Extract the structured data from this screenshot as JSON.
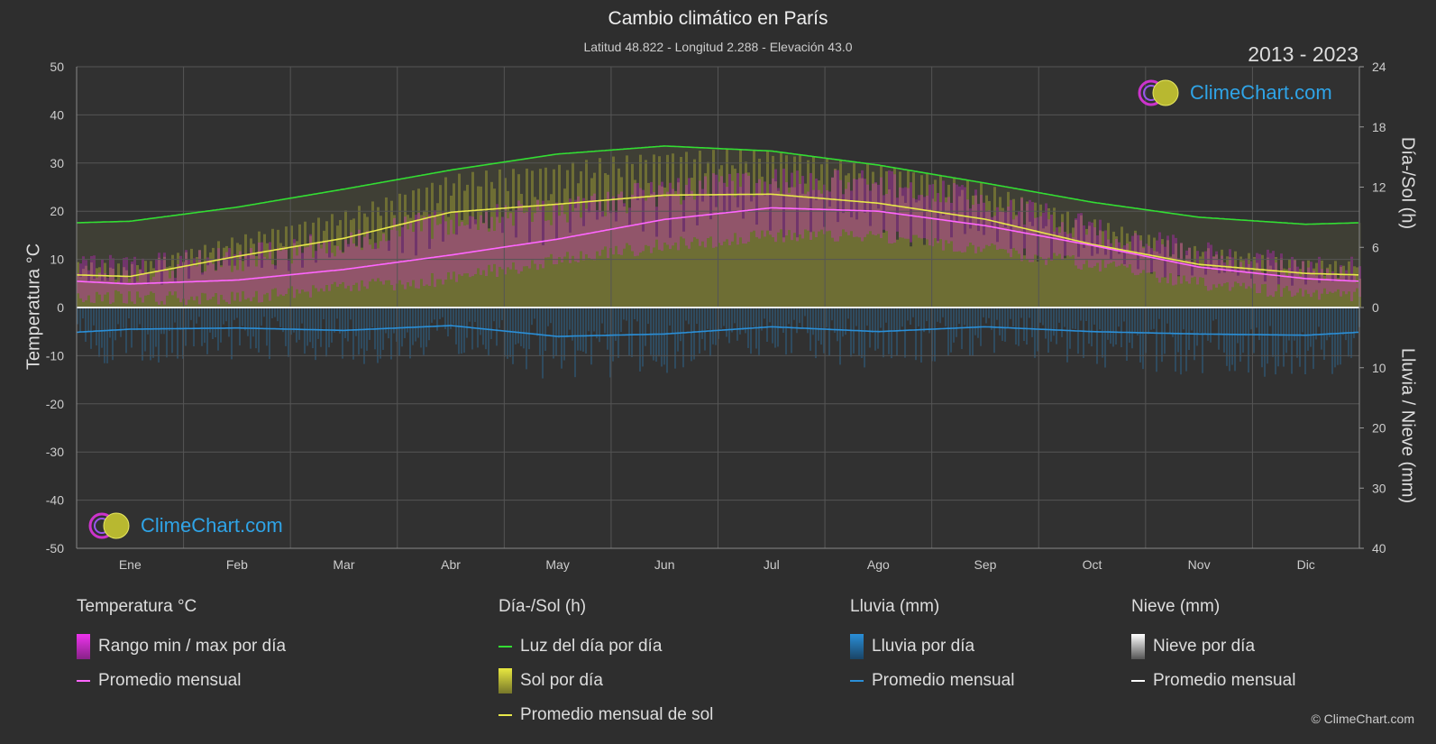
{
  "header": {
    "title": "Cambio climático en París",
    "subtitle": "Latitud 48.822 - Longitud 2.288 - Elevación 43.0",
    "range": "2013 - 2023"
  },
  "axes": {
    "left_label": "Temperatura °C",
    "right_top_label": "Día-/Sol (h)",
    "right_bottom_label": "Lluvia / Nieve (mm)"
  },
  "logo": {
    "text": "ClimeChart.com"
  },
  "legend": {
    "temp": {
      "title": "Temperatura °C",
      "range": "Rango min / max por día",
      "avg": "Promedio mensual"
    },
    "sun": {
      "title": "Día-/Sol (h)",
      "daylight": "Luz del día por día",
      "sun": "Sol por día",
      "sun_avg": "Promedio mensual de sol"
    },
    "rain": {
      "title": "Lluvia (mm)",
      "rain": "Lluvia por día",
      "avg": "Promedio mensual"
    },
    "snow": {
      "title": "Nieve (mm)",
      "snow": "Nieve por día",
      "avg": "Promedio mensual"
    }
  },
  "copyright": "© ClimeChart.com",
  "colors": {
    "background": "#2e2e2e",
    "grid": "#555555",
    "daylight": "#33dd33",
    "sun_avg": "#e8e84a",
    "temp_avg": "#ff66ff",
    "temp_range": "#dd22dd",
    "rain": "#2a8fd8",
    "snow": "#ffffff",
    "sun_fill": "#a8a832"
  },
  "chart_data": {
    "type": "line",
    "categories": [
      "Ene",
      "Feb",
      "Mar",
      "Abr",
      "May",
      "Jun",
      "Jul",
      "Ago",
      "Sep",
      "Oct",
      "Nov",
      "Dic"
    ],
    "y_left": {
      "label": "Temperatura °C",
      "ticks": [
        50,
        40,
        30,
        20,
        10,
        0,
        -10,
        -20,
        -30,
        -40,
        -50
      ],
      "range": [
        -50,
        50
      ]
    },
    "y_right_top": {
      "label": "Día-/Sol (h)",
      "ticks": [
        24,
        18,
        12,
        6,
        0
      ],
      "range": [
        0,
        24
      ]
    },
    "y_right_bottom": {
      "label": "Lluvia / Nieve (mm)",
      "ticks": [
        0,
        10,
        20,
        30,
        40
      ],
      "range": [
        0,
        40
      ]
    },
    "series": [
      {
        "name": "Luz del día por día",
        "unit": "h",
        "values": [
          8.6,
          10.0,
          11.8,
          13.7,
          15.3,
          16.1,
          15.6,
          14.2,
          12.4,
          10.5,
          9.0,
          8.3
        ]
      },
      {
        "name": "Promedio mensual de sol",
        "unit": "h",
        "values": [
          3.1,
          5.1,
          6.9,
          9.5,
          10.3,
          11.2,
          11.3,
          10.4,
          8.8,
          6.3,
          4.3,
          3.4
        ]
      },
      {
        "name": "Promedio mensual",
        "unit": "°C",
        "values": [
          4.9,
          5.7,
          7.9,
          10.9,
          14.2,
          18.3,
          20.7,
          20.0,
          17.0,
          12.9,
          8.4,
          6.0
        ]
      },
      {
        "name": "Lluvia promedio mensual",
        "unit": "mm",
        "values": [
          3.6,
          3.4,
          3.8,
          3.0,
          4.8,
          4.4,
          3.2,
          4.0,
          3.2,
          4.0,
          4.4,
          4.6
        ]
      }
    ],
    "temp_range_daily_avg": {
      "min": [
        2,
        2,
        4,
        6,
        10,
        13,
        15,
        15,
        12,
        9,
        5,
        3
      ],
      "max": [
        8,
        10,
        14,
        18,
        20,
        24,
        26,
        26,
        22,
        16,
        11,
        8
      ]
    },
    "legend_placement": "bottom",
    "grid": true
  }
}
